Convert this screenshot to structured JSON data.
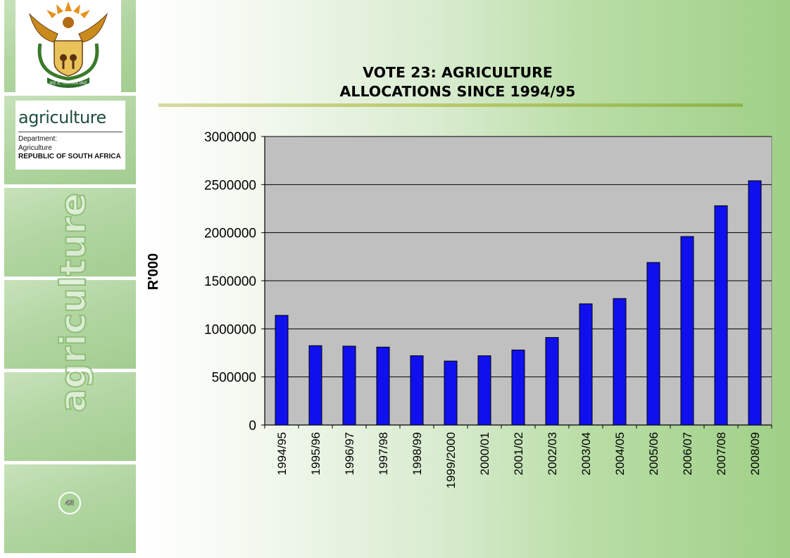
{
  "header": {
    "title_line1": "VOTE 23: AGRICULTURE",
    "title_line2": "ALLOCATIONS SINCE 1994/95"
  },
  "sidebar": {
    "crest_motto": "!KE E: /XARRA //KE",
    "logo_word": "agriculture",
    "logo_line1": "Department:",
    "logo_line2": "Agriculture",
    "logo_line3": "REPUBLIC OF SOUTH AFRICA",
    "vertical_word": "agriculture",
    "page_number": "43"
  },
  "colors": {
    "bar_fill": "#1010ee",
    "plot_area": "#c0c0c0",
    "sidebar_panel": "#b2d6a2",
    "title_rule": "#a3bf5a"
  },
  "chart_data": {
    "type": "bar",
    "title": "VOTE 23: AGRICULTURE ALLOCATIONS SINCE 1994/95",
    "xlabel": "",
    "ylabel": "R'000",
    "ylim": [
      0,
      3000000
    ],
    "yticks": [
      "0",
      "500000",
      "1000000",
      "1500000",
      "2000000",
      "2500000",
      "3000000"
    ],
    "grid": true,
    "legend": "none",
    "categories": [
      "1994/95",
      "1995/96",
      "1996/97",
      "1997/98",
      "1998/99",
      "1999/2000",
      "2000/01",
      "2001/02",
      "2002/03",
      "2003/04",
      "2004/05",
      "2005/06",
      "2006/07",
      "2007/08",
      "2008/09"
    ],
    "values": [
      1140000,
      825000,
      820000,
      810000,
      720000,
      665000,
      720000,
      780000,
      910000,
      1260000,
      1315000,
      1690000,
      1960000,
      2280000,
      2540000
    ]
  }
}
